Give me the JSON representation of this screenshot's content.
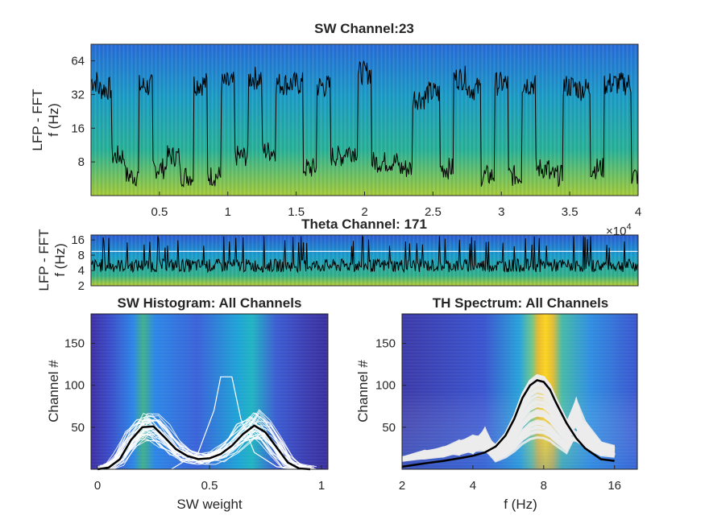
{
  "chart_data": [
    {
      "type": "heatmap",
      "title": "SW Channel:23",
      "ylabel_line1": "LFP - FFT",
      "ylabel_line2": "f (Hz)",
      "y_scale": "log",
      "ylim": [
        4,
        90
      ],
      "yticks": [
        "8",
        "16",
        "32",
        "64"
      ],
      "xlim": [
        0,
        40000
      ],
      "xticks": [
        "0.5",
        "1",
        "1.5",
        "2",
        "2.5",
        "3",
        "3.5",
        "4"
      ],
      "x_exponent": "×10^4",
      "overlay_line_color": "#000000",
      "overlay_trace_hz_per_tick": [
        42,
        36,
        9,
        6,
        38,
        7,
        9,
        6,
        40,
        6,
        40,
        9,
        45,
        10,
        40,
        40,
        7,
        38,
        9,
        10,
        50,
        8,
        8,
        7,
        30,
        33,
        7,
        45,
        36,
        6,
        40,
        6,
        40,
        7,
        6,
        38,
        36,
        7,
        40,
        40,
        6
      ]
    },
    {
      "type": "heatmap",
      "title": "Theta Channel: 171",
      "ylabel_line1": "LFP - FFT",
      "ylabel_line2": "f (Hz)",
      "y_scale": "log",
      "ylim": [
        2,
        20
      ],
      "yticks": [
        "2",
        "4",
        "8",
        "16"
      ],
      "xlim": [
        0,
        40000
      ],
      "threshold_line_hz": 9.5,
      "overlay_trace_hz_level": 5
    },
    {
      "type": "heatmap",
      "title": "SW Histogram: All Channels",
      "xlabel": "SW weight",
      "ylabel": "Channel #",
      "xlim": [
        0,
        1
      ],
      "ylim": [
        0,
        185
      ],
      "xticks": [
        "0",
        "0.5",
        "1"
      ],
      "yticks": [
        "50",
        "100",
        "150"
      ],
      "mean_curve": {
        "x": [
          0,
          0.05,
          0.1,
          0.15,
          0.2,
          0.25,
          0.3,
          0.35,
          0.4,
          0.45,
          0.5,
          0.55,
          0.6,
          0.65,
          0.7,
          0.75,
          0.8,
          0.85,
          0.9,
          0.95
        ],
        "y": [
          0,
          2,
          12,
          35,
          50,
          51,
          38,
          24,
          16,
          12,
          13,
          18,
          28,
          42,
          52,
          44,
          26,
          8,
          1,
          0
        ]
      }
    },
    {
      "type": "heatmap",
      "title": "TH Spectrum: All Channels",
      "xlabel": "f (Hz)",
      "ylabel": "Channel #",
      "x_scale": "log",
      "xlim": [
        2,
        20
      ],
      "ylim": [
        0,
        185
      ],
      "xticks": [
        "2",
        "4",
        "8",
        "16"
      ],
      "yticks": [
        "50",
        "100",
        "150"
      ],
      "mean_curve": {
        "x": [
          2,
          2.5,
          3,
          3.5,
          4,
          4.5,
          5,
          5.5,
          6,
          6.5,
          7,
          7.5,
          8,
          8.5,
          9,
          10,
          11,
          12,
          14,
          16
        ],
        "y": [
          3,
          7,
          10,
          13,
          16,
          20,
          27,
          40,
          60,
          85,
          100,
          106,
          104,
          95,
          80,
          55,
          37,
          25,
          12,
          10
        ]
      }
    }
  ]
}
